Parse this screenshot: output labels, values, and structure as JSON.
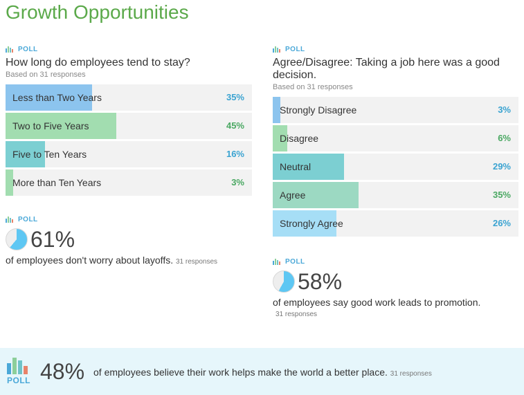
{
  "page": {
    "title": "Growth Opportunities"
  },
  "colors": {
    "title": "#5ba94a",
    "poll_tag": "#4aa8d8",
    "blue": "#8cc4ee",
    "green": "#a2ddb0",
    "teal": "#7ccfd2",
    "mint": "#9cd9c2",
    "sky": "#a6def6",
    "pct_blue": "#3aa3d1",
    "pct_green": "#4aa862",
    "bar_track": "#f2f2f2",
    "pie_fill": "#5ec7f3",
    "banner_bg": "#e6f6fb"
  },
  "tenure_poll": {
    "tag": "POLL",
    "icon": "bar-chart-icon",
    "question": "How long do employees tend to stay?",
    "basis": "Based on 31 responses",
    "options": [
      {
        "label": "Less than Two Years",
        "percent_text": "35%",
        "fraction": 0.35,
        "fill_color": "#8cc4ee",
        "pct_color": "#3aa3d1"
      },
      {
        "label": "Two to Five Years",
        "percent_text": "45%",
        "fraction": 0.45,
        "fill_color": "#a2ddb0",
        "pct_color": "#4aa862"
      },
      {
        "label": "Five to Ten Years",
        "percent_text": "16%",
        "fraction": 0.16,
        "fill_color": "#7ccfd2",
        "pct_color": "#3aa3d1"
      },
      {
        "label": "More than Ten Years",
        "percent_text": "3%",
        "fraction": 0.03,
        "fill_color": "#a2ddb0",
        "pct_color": "#4aa862"
      }
    ]
  },
  "layoffs_stat": {
    "tag": "POLL",
    "icon": "pie-chart-icon",
    "percent_text": "61%",
    "fraction": 0.61,
    "text": "of employees don't worry about layoffs.",
    "responses": "31 responses"
  },
  "decision_poll": {
    "tag": "POLL",
    "icon": "bar-chart-icon",
    "question": "Agree/Disagree: Taking a job here was a good decision.",
    "basis": "Based on 31 responses",
    "options": [
      {
        "label": "Strongly Disagree",
        "percent_text": "3%",
        "fraction": 0.03,
        "fill_color": "#8cc4ee",
        "pct_color": "#3aa3d1"
      },
      {
        "label": "Disagree",
        "percent_text": "6%",
        "fraction": 0.06,
        "fill_color": "#a2ddb0",
        "pct_color": "#4aa862"
      },
      {
        "label": "Neutral",
        "percent_text": "29%",
        "fraction": 0.29,
        "fill_color": "#7ccfd2",
        "pct_color": "#3aa3d1"
      },
      {
        "label": "Agree",
        "percent_text": "35%",
        "fraction": 0.35,
        "fill_color": "#9cd9c2",
        "pct_color": "#4aa862"
      },
      {
        "label": "Strongly Agree",
        "percent_text": "26%",
        "fraction": 0.26,
        "fill_color": "#a6def6",
        "pct_color": "#3aa3d1"
      }
    ]
  },
  "promotion_stat": {
    "tag": "POLL",
    "icon": "pie-chart-icon",
    "percent_text": "58%",
    "fraction": 0.58,
    "text": "of employees say good work leads to promotion.",
    "responses": "31 responses"
  },
  "banner": {
    "icon": "bar-chart-icon",
    "tag": "POLL",
    "percent_text": "48%",
    "text": "of employees believe their work helps make the world a better place.",
    "responses": "31 responses"
  }
}
